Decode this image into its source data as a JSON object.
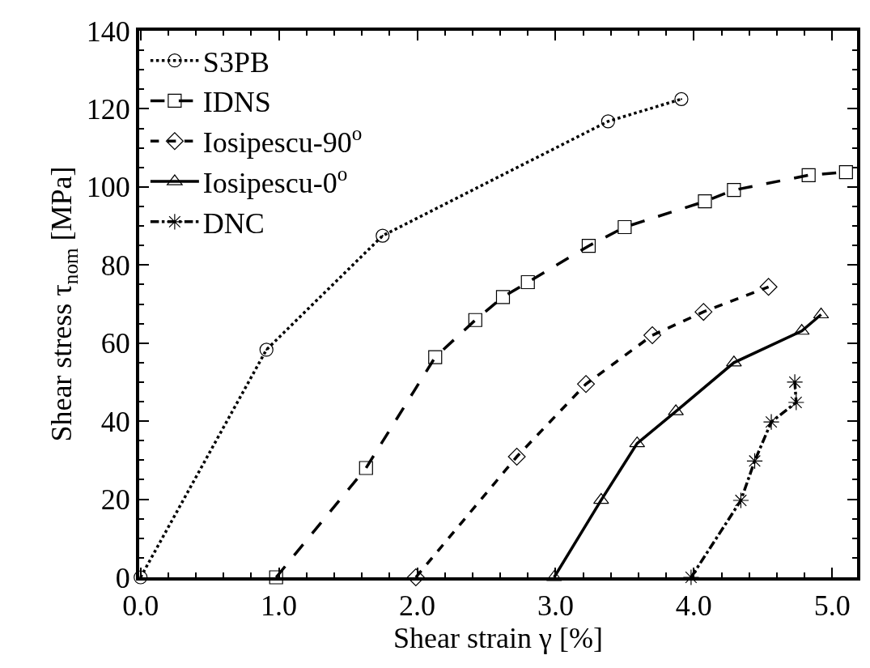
{
  "chart_data": {
    "type": "line",
    "xlabel": "Shear strain γ [%]",
    "ylabel": "Shear stress τ$_{nom}$ [MPa]",
    "xlim": [
      -0.01,
      5.18
    ],
    "ylim": [
      0,
      140
    ],
    "xticks": [
      {
        "value": 0,
        "label": "0.0"
      },
      {
        "value": 1,
        "label": "1.0"
      },
      {
        "value": 2,
        "label": "2.0"
      },
      {
        "value": 3,
        "label": "3.0"
      },
      {
        "value": 4,
        "label": "4.0"
      },
      {
        "value": 5,
        "label": "5.0"
      }
    ],
    "yticks": [
      0,
      20,
      40,
      60,
      80,
      100,
      120,
      140
    ],
    "legend": "top left",
    "series": [
      {
        "name": "S3PB",
        "color": "#000000",
        "marker": "circle",
        "line_style": "dotted",
        "x": [
          0,
          0.91,
          1.75,
          3.38,
          3.91
        ],
        "values": [
          0,
          58.3,
          87.5,
          116.8,
          122.5
        ]
      },
      {
        "name": "IDNS",
        "color": "#000000",
        "marker": "square",
        "line_style": "longdash",
        "x": [
          0.98,
          1.63,
          2.13,
          2.42,
          2.62,
          2.8,
          3.24,
          3.5,
          4.08,
          4.29,
          4.83,
          5.1
        ],
        "values": [
          0,
          28.0,
          56.4,
          65.9,
          71.8,
          75.6,
          84.9,
          89.7,
          96.3,
          99.2,
          103.0,
          103.8
        ]
      },
      {
        "name": "Iosipescu-90$^{o}$",
        "color": "#000000",
        "marker": "diamond",
        "line_style": "dashed",
        "x": [
          1.99,
          2.72,
          3.22,
          3.7,
          4.07,
          4.54
        ],
        "values": [
          0,
          30.9,
          49.5,
          62.0,
          68.0,
          74.4
        ]
      },
      {
        "name": "Iosipescu-0$^{o}$",
        "color": "#000000",
        "marker": "triangle",
        "line_style": "solid",
        "x": [
          2.99,
          3.33,
          3.59,
          3.87,
          4.29,
          4.78,
          4.92
        ],
        "values": [
          0,
          19.8,
          34.3,
          42.5,
          55.0,
          63.1,
          67.3
        ]
      },
      {
        "name": "DNC",
        "color": "#000000",
        "marker": "cross",
        "line_style": "dashdot",
        "x": [
          3.98,
          4.34,
          4.44,
          4.56,
          4.74,
          4.73
        ],
        "values": [
          0,
          19.7,
          29.8,
          39.8,
          44.8,
          50.0
        ]
      }
    ]
  }
}
